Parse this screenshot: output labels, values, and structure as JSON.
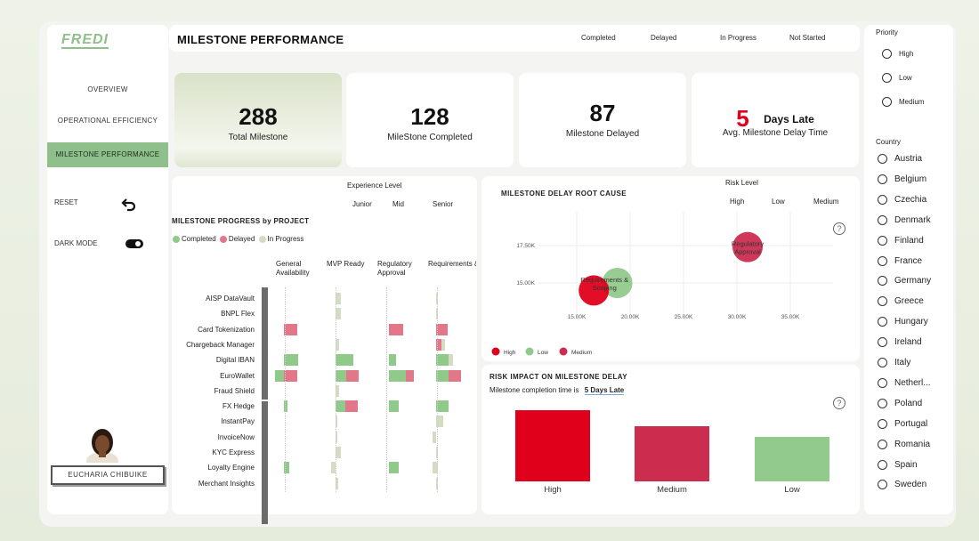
{
  "logo": {
    "text": "FREDI"
  },
  "title": "MILESTONE PERFORMANCE",
  "header_filters": [
    "Completed",
    "Delayed",
    "In Progress",
    "Not Started"
  ],
  "nav": {
    "items": [
      "OVERVIEW",
      "OPERATIONAL EFFICIENCY",
      "MILESTONE PERFORMANCE"
    ],
    "active_index": 2,
    "reset_label": "RESET",
    "dark_mode_label": "DARK MODE"
  },
  "user": {
    "name": "EUCHARIA CHIBUIKE"
  },
  "kpis": {
    "total": {
      "value": "288",
      "label": "Total Milestone"
    },
    "completed": {
      "value": "128",
      "label": "MileStone Completed"
    },
    "delayed": {
      "value": "87",
      "label": "Milestone Delayed"
    },
    "avg_delay": {
      "value": "5",
      "unit": "Days Late",
      "label": "Avg. Milestone Delay Time"
    }
  },
  "progress": {
    "title": "MILESTONE PROGRESS by PROJECT",
    "experience_title": "Experience Level",
    "experience_levels": [
      "Junior",
      "Mid",
      "Senior"
    ],
    "legend": [
      "Completed",
      "Delayed",
      "In Progress"
    ],
    "columns": [
      "General Availability",
      "MVP Ready",
      "Regulatory Approval",
      "Requirements & Scoping"
    ],
    "projects": [
      "AISP DataVault",
      "BNPL Flex",
      "Card Tokenization",
      "Chargeback Manager",
      "Digital IBAN",
      "EuroWallet",
      "Fraud Shield",
      "FX Hedge",
      "InstantPay",
      "InvoiceNow",
      "KYC Express",
      "Loyalty Engine",
      "Merchant Insights"
    ],
    "colors": {
      "completed": "#8fca8a",
      "delayed": "#e2778a",
      "in_progress": "#d5dcc4"
    }
  },
  "root_cause": {
    "title": "MILESTONE DELAY ROOT CAUSE",
    "risk_title": "Risk Level",
    "risk_levels": [
      "High",
      "Low",
      "Medium"
    ],
    "y_ticks": [
      "17.50K",
      "15.00K"
    ],
    "x_ticks": [
      "15.00K",
      "20.00K",
      "25.00K",
      "30.00K",
      "35.00K"
    ],
    "bubble_labels": [
      "Regulatory Approval",
      "Requirements & Scoping"
    ],
    "legend": [
      "High",
      "Low",
      "Medium"
    ],
    "help": "?"
  },
  "risk_impact": {
    "title": "RISK IMPACT ON MILESTONE DELAY",
    "subtitle_prefix": "Milestone completion time is",
    "subtitle_value": "5 Days Late",
    "help": "?"
  },
  "chart_data": [
    {
      "type": "bar",
      "title": "RISK IMPACT ON MILESTONE DELAY",
      "categories": [
        "High",
        "Medium",
        "Low"
      ],
      "values": [
        80,
        62,
        50
      ],
      "colors": [
        "#e0001b",
        "#cc2d4f",
        "#92c98c"
      ]
    },
    {
      "type": "scatter",
      "title": "MILESTONE DELAY ROOT CAUSE",
      "points": [
        {
          "label": "Regulatory Approval",
          "x": 31000,
          "y": 17400,
          "risk": "Medium"
        },
        {
          "label": "Requirements & Scoping",
          "x": 18800,
          "y": 15000,
          "risk": "Low"
        },
        {
          "label": "Requirements & Scoping",
          "x": 16600,
          "y": 14500,
          "risk": "High"
        }
      ],
      "series_colors": {
        "High": "#e0001b",
        "Low": "#92c98c",
        "Medium": "#cc2d4f"
      }
    }
  ],
  "priority": {
    "title": "Priority",
    "options": [
      "High",
      "Low",
      "Medium"
    ]
  },
  "country": {
    "title": "Country",
    "options": [
      "Austria",
      "Belgium",
      "Czechia",
      "Denmark",
      "Finland",
      "France",
      "Germany",
      "Greece",
      "Hungary",
      "Ireland",
      "Italy",
      "Netherl...",
      "Poland",
      "Portugal",
      "Romania",
      "Spain",
      "Sweden"
    ]
  }
}
